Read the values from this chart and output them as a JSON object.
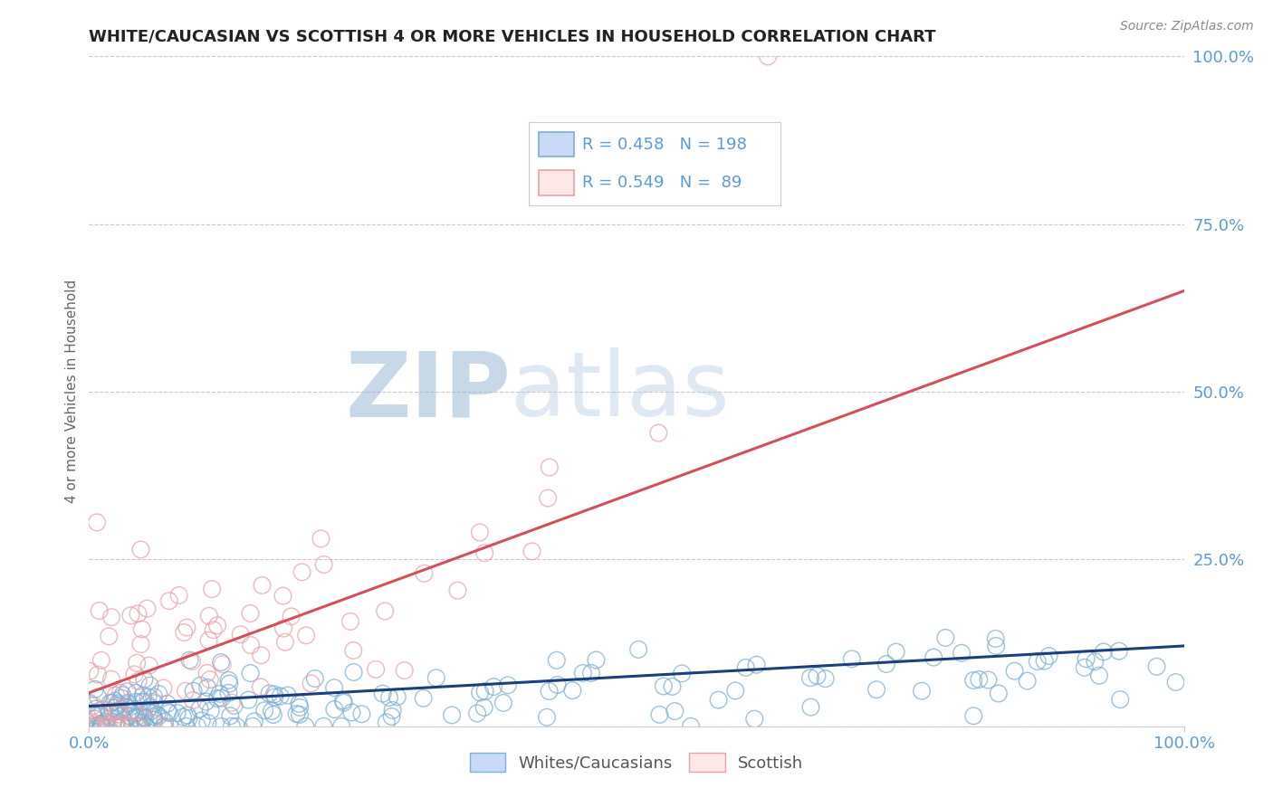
{
  "title": "WHITE/CAUCASIAN VS SCOTTISH 4 OR MORE VEHICLES IN HOUSEHOLD CORRELATION CHART",
  "source_text": "Source: ZipAtlas.com",
  "ylabel": "4 or more Vehicles in Household",
  "legend_label1": "Whites/Caucasians",
  "legend_label2": "Scottish",
  "color_blue": "#7bafd4",
  "color_pink": "#e8a0a8",
  "color_blue_line": "#1a3f7a",
  "color_pink_line": "#d44f5a",
  "color_title": "#222222",
  "color_right_ticks": "#5b9bd5",
  "watermark_ZIP": "#b0c8e8",
  "watermark_atlas": "#c8d8f0",
  "background_color": "#ffffff",
  "R1": 0.458,
  "N1": 198,
  "R2": 0.549,
  "N2": 89,
  "xlim": [
    0.0,
    100.0
  ],
  "ylim": [
    0.0,
    100.0
  ],
  "figsize": [
    14.06,
    8.92
  ],
  "dpi": 100
}
